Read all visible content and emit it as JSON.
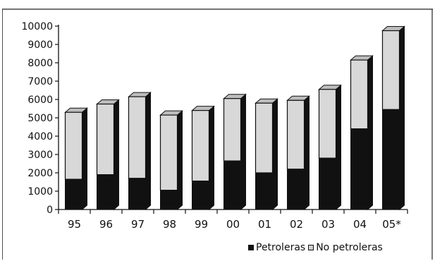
{
  "chart_data": {
    "type": "bar",
    "stacked": true,
    "style": "3d",
    "categories": [
      "95",
      "96",
      "97",
      "98",
      "99",
      "00",
      "01",
      "02",
      "03",
      "04",
      "05*"
    ],
    "series": [
      {
        "name": "Petroleras",
        "color": "#111111",
        "values": [
          1650,
          1900,
          1700,
          1050,
          1550,
          2650,
          2000,
          2200,
          2800,
          4400,
          5450
        ]
      },
      {
        "name": "No petroleras",
        "color": "#d8d8d8",
        "values": [
          3650,
          3850,
          4450,
          4100,
          3850,
          3400,
          3800,
          3750,
          3750,
          3750,
          4300
        ]
      }
    ],
    "yticks": [
      0,
      1000,
      2000,
      3000,
      4000,
      5000,
      6000,
      7000,
      8000,
      9000,
      10000
    ],
    "ylim": [
      0,
      10000
    ],
    "legend_position": "bottom-right",
    "grid": false
  }
}
